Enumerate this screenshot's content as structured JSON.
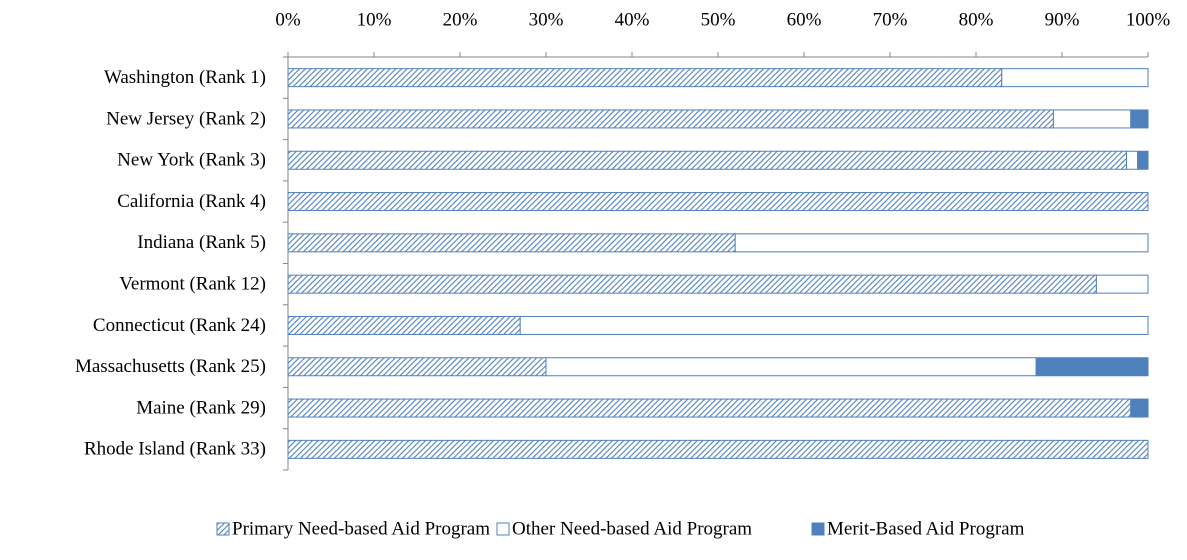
{
  "chart_data": {
    "type": "stacked-bar-horizontal",
    "categories": [
      "Washington (Rank 1)",
      "New Jersey (Rank 2)",
      "New York (Rank 3)",
      "California (Rank 4)",
      "Indiana (Rank 5)",
      "Vermont (Rank 12)",
      "Connecticut (Rank 24)",
      "Massachusetts (Rank 25)",
      "Maine (Rank 29)",
      "Rhode Island (Rank 33)"
    ],
    "series": [
      {
        "name": "Primary Need-based Aid Program",
        "color": "#4f81bd",
        "fill": "hatch",
        "values": [
          83,
          89,
          97.5,
          100,
          52,
          94,
          27,
          30,
          98,
          100
        ]
      },
      {
        "name": "Other Need-based Aid Program",
        "color": "#4f81bd",
        "fill": "none",
        "values": [
          17,
          9,
          1.3,
          0,
          48,
          6,
          73,
          57,
          0,
          0
        ]
      },
      {
        "name": "Merit-Based Aid Program",
        "color": "#4f81bd",
        "fill": "solid",
        "values": [
          0,
          2,
          1.2,
          0,
          0,
          0,
          0,
          13,
          2,
          0
        ]
      }
    ],
    "xlim": [
      0,
      100
    ],
    "xticks": [
      {
        "value": 0,
        "label": "0%"
      },
      {
        "value": 10,
        "label": "10%"
      },
      {
        "value": 20,
        "label": "20%"
      },
      {
        "value": 30,
        "label": "30%"
      },
      {
        "value": 40,
        "label": "40%"
      },
      {
        "value": 50,
        "label": "50%"
      },
      {
        "value": 60,
        "label": "60%"
      },
      {
        "value": 70,
        "label": "70%"
      },
      {
        "value": 80,
        "label": "80%"
      },
      {
        "value": 90,
        "label": "90%"
      },
      {
        "value": 100,
        "label": "100%"
      }
    ],
    "legend": "bottom"
  }
}
